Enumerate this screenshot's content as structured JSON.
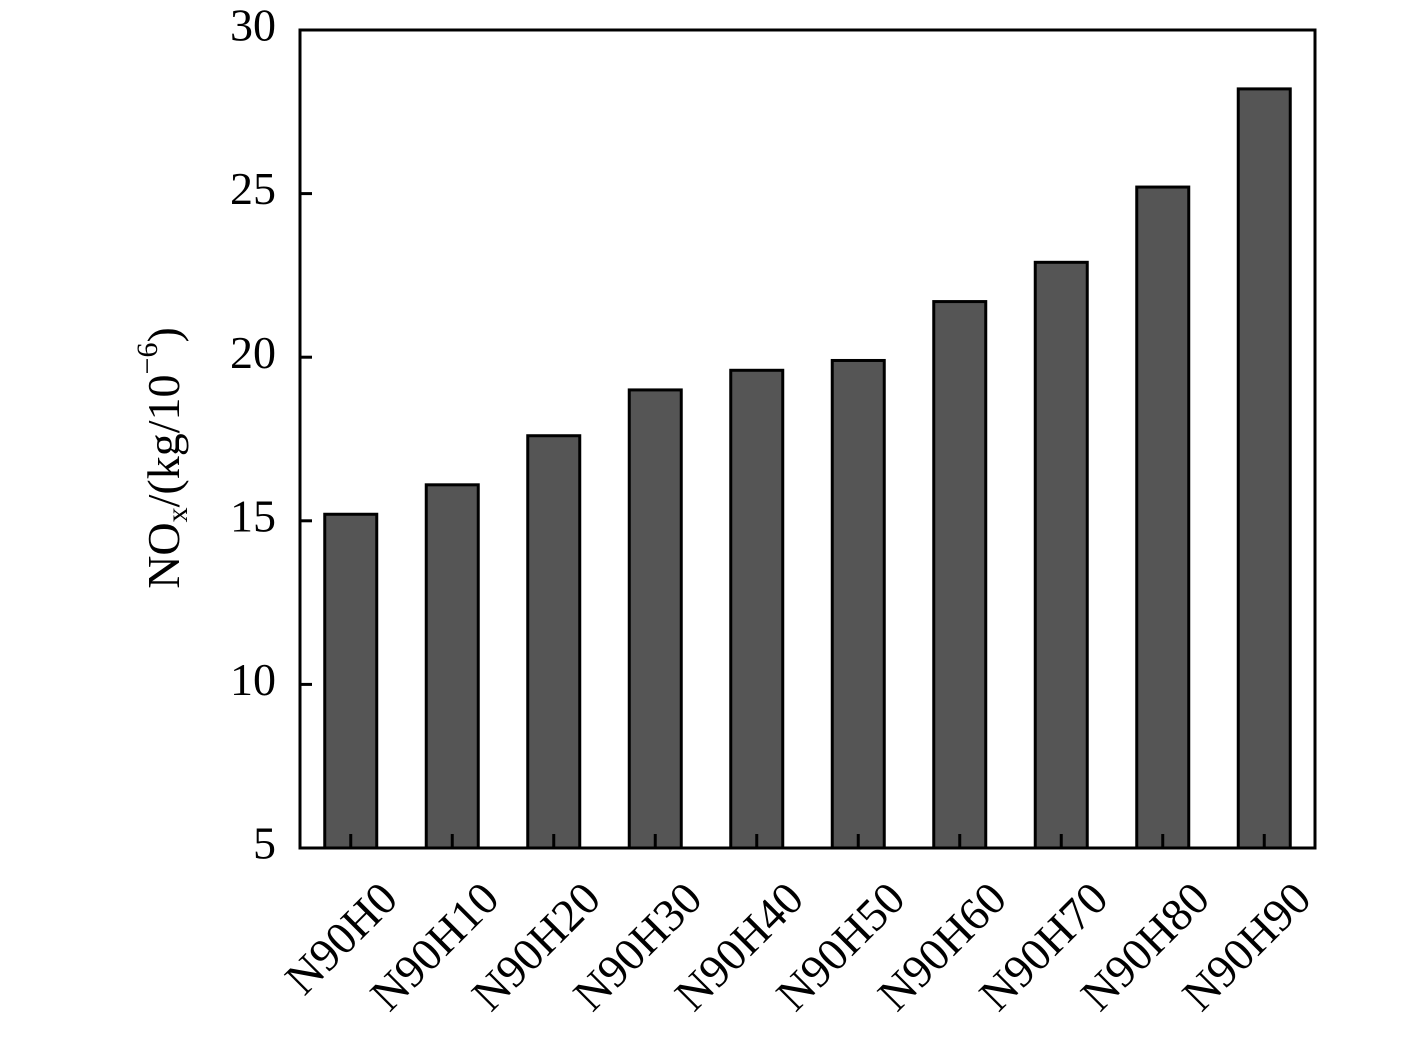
{
  "chart_data": {
    "type": "bar",
    "y_label": [
      "NO",
      "x",
      "/(kg/10",
      "−6",
      ")"
    ],
    "categories": [
      "N90H0",
      "N90H10",
      "N90H20",
      "N90H30",
      "N90H40",
      "N90H50",
      "N90H60",
      "N90H70",
      "N90H80",
      "N90H90"
    ],
    "values": [
      15.2,
      16.1,
      17.6,
      19.0,
      19.6,
      19.9,
      21.7,
      22.9,
      25.2,
      28.2
    ],
    "color": "#555555",
    "ylim": [
      5,
      30
    ],
    "yticks": [
      5,
      10,
      15,
      20,
      25,
      30
    ],
    "grid": false
  }
}
